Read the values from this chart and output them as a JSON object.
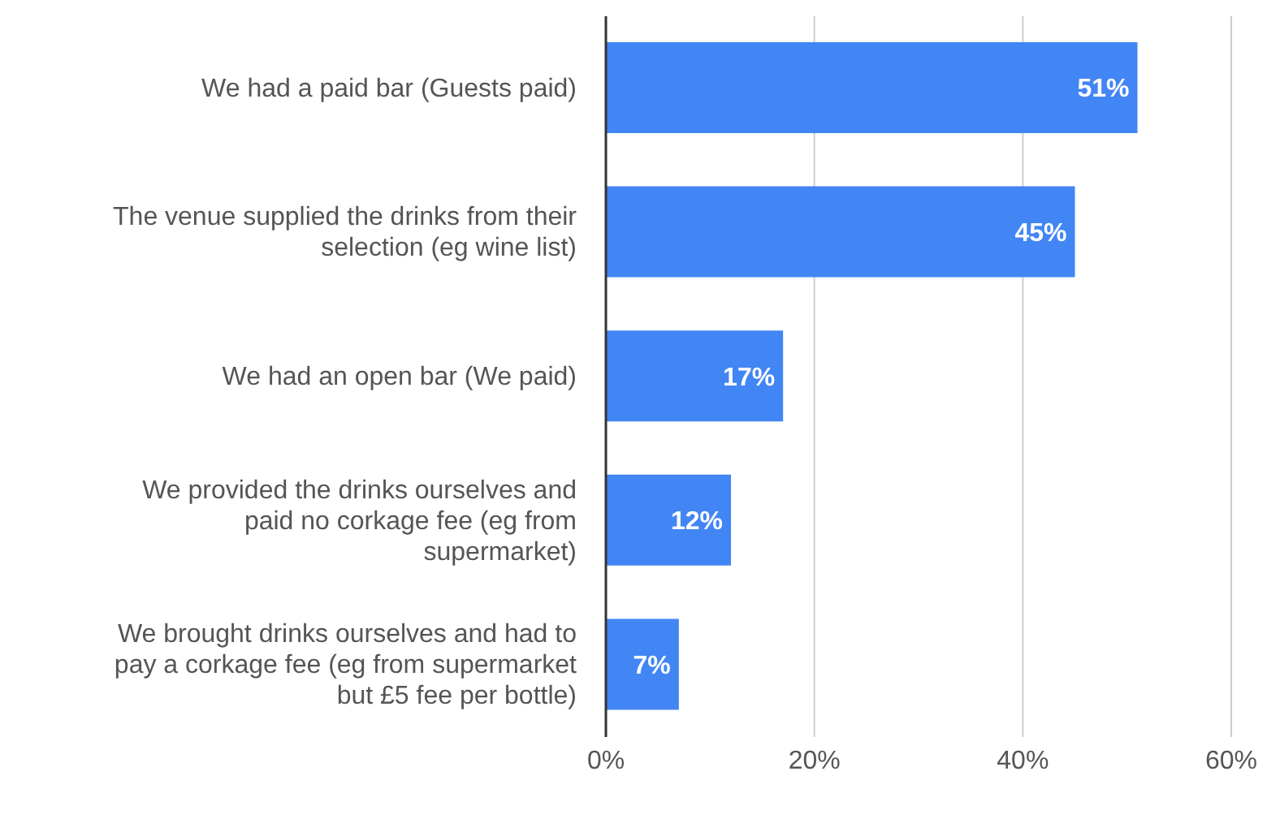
{
  "chart_data": {
    "type": "bar",
    "orientation": "horizontal",
    "categories": [
      "We had a paid bar (Guests paid)",
      "The venue supplied the drinks from their selection (eg wine list)",
      "We had an open bar (We paid)",
      "We provided the drinks ourselves and paid no corkage fee (eg from supermarket)",
      "We brought drinks ourselves and had to pay a corkage fee (eg from supermarket but £5 fee per bottle)"
    ],
    "values": [
      51,
      45,
      17,
      12,
      7
    ],
    "value_labels": [
      "51%",
      "45%",
      "17%",
      "12%",
      "7%"
    ],
    "color": "#4285f4",
    "xlim": [
      0,
      60
    ],
    "xticks": [
      {
        "value": 0,
        "label": "0%"
      },
      {
        "value": 20,
        "label": "20%"
      },
      {
        "value": 40,
        "label": "40%"
      },
      {
        "value": 60,
        "label": "60%"
      }
    ],
    "grid": "x"
  }
}
